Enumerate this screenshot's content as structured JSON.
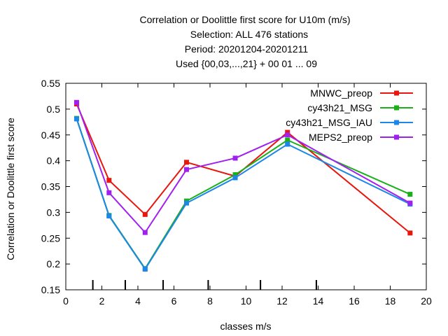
{
  "chart_data": {
    "type": "line",
    "title_lines": [
      "Correlation or Doolittle first score  for U10m (m/s)",
      "Selection: ALL    476 stations",
      "Period: 20201204-20201211",
      "Used {00,03,...,21} + 00 01 ... 09"
    ],
    "xlabel": "classes m/s",
    "ylabel": "Correlation or Doolittle first score",
    "xlim": [
      0,
      20
    ],
    "ylim": [
      0.15,
      0.55
    ],
    "xticks": [
      0,
      2,
      4,
      6,
      8,
      10,
      12,
      14,
      16,
      18,
      20
    ],
    "yticks": [
      0.15,
      0.2,
      0.25,
      0.3,
      0.35,
      0.4,
      0.45,
      0.5,
      0.55
    ],
    "xtick_labels": [
      "0",
      "2",
      "4",
      "6",
      "8",
      "10",
      "12",
      "14",
      "16",
      "18",
      "20"
    ],
    "ytick_labels": [
      "0.15",
      "0.2",
      "0.25",
      "0.3",
      "0.35",
      "0.4",
      "0.45",
      "0.5",
      "0.55"
    ],
    "class_boundaries": [
      1.5,
      3.3,
      5.4,
      7.9,
      10.8,
      13.9
    ],
    "grid": false,
    "legend_position": "top-right",
    "x": [
      0.6,
      2.4,
      4.4,
      6.7,
      9.4,
      12.3,
      19.1
    ],
    "series": [
      {
        "name": "MNWC_preop",
        "color": "#e8160c",
        "values": [
          0.51,
          0.362,
          0.296,
          0.397,
          0.37,
          0.455,
          0.26
        ]
      },
      {
        "name": "cy43h21_MSG",
        "color": "#1ab01a",
        "values": [
          0.482,
          0.294,
          0.191,
          0.322,
          0.373,
          0.44,
          0.335
        ]
      },
      {
        "name": "cy43h21_MSG_IAU",
        "color": "#1d86e8",
        "values": [
          0.481,
          0.293,
          0.19,
          0.318,
          0.367,
          0.432,
          0.316
        ]
      },
      {
        "name": "MEPS2_preop",
        "color": "#a020f0",
        "values": [
          0.513,
          0.338,
          0.261,
          0.383,
          0.405,
          0.45,
          0.318
        ]
      }
    ]
  }
}
